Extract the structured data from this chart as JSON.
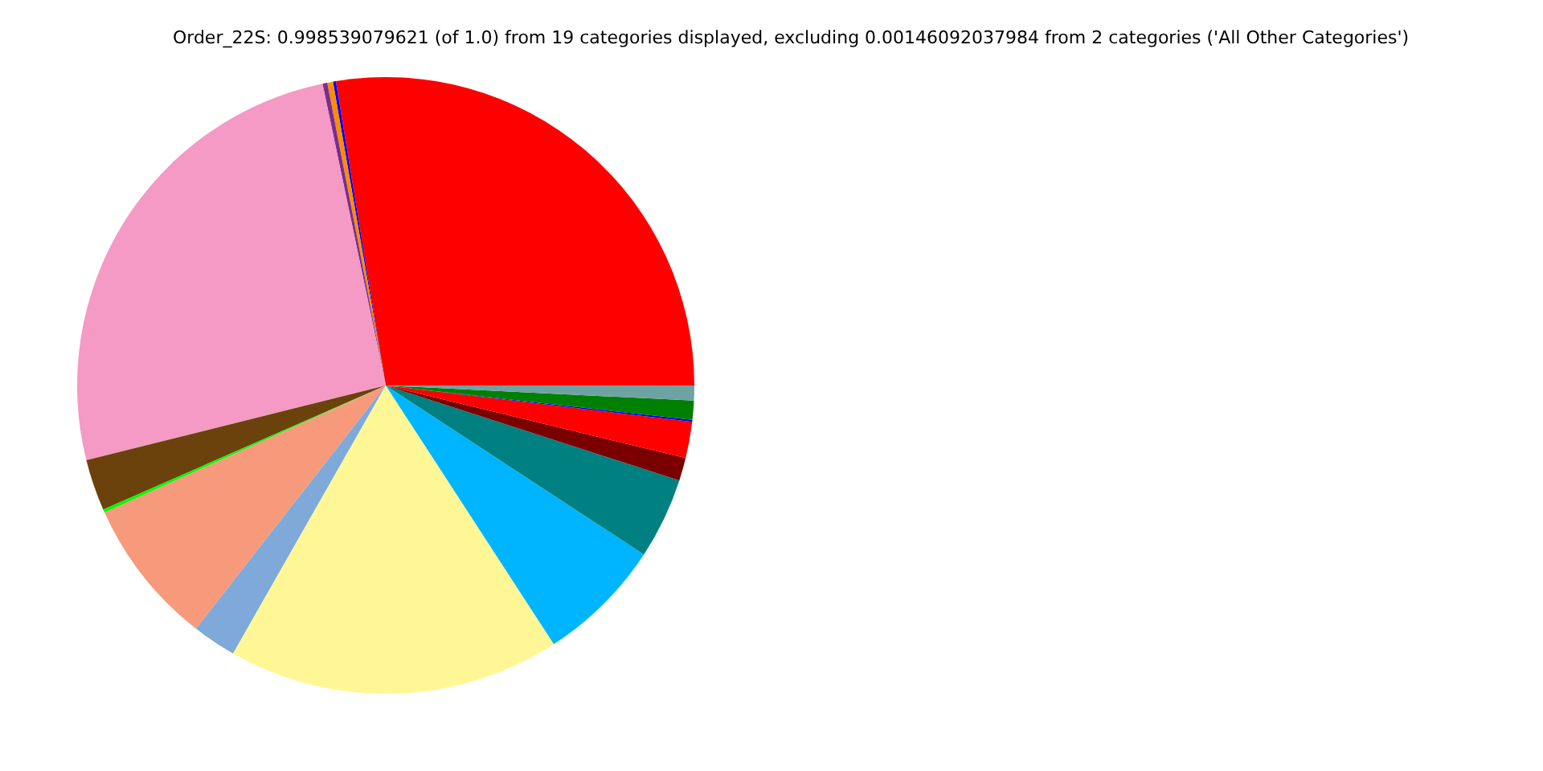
{
  "chart_data": {
    "type": "pie",
    "title": "Order_22S: 0.998539079621 (of 1.0) from 19 categories displayed, excluding 0.00146092037984 from 2 categories ('All Other Categories')",
    "categories": [
      null,
      null,
      null,
      null,
      null,
      null,
      null,
      null,
      null,
      null,
      null,
      null,
      null,
      null,
      null,
      null,
      null
    ],
    "values": [
      27.58,
      0.15,
      0.3,
      0.25,
      25.6,
      2.7,
      0.17,
      7.7,
      2.3,
      17.4,
      6.6,
      4.25,
      1.2,
      1.9,
      0.1,
      1.0,
      0.78
    ],
    "colors": [
      "#ff0000",
      "#0000ff",
      "#ff8c00",
      "#7b2d8e",
      "#f49ac4",
      "#6b420c",
      "#00ff00",
      "#f79a7b",
      "#7ea9d8",
      "#fff795",
      "#00b5ff",
      "#008080",
      "#7a0000",
      "#ff0000",
      "#0000ff",
      "#008000",
      "#6fa3a3"
    ]
  }
}
